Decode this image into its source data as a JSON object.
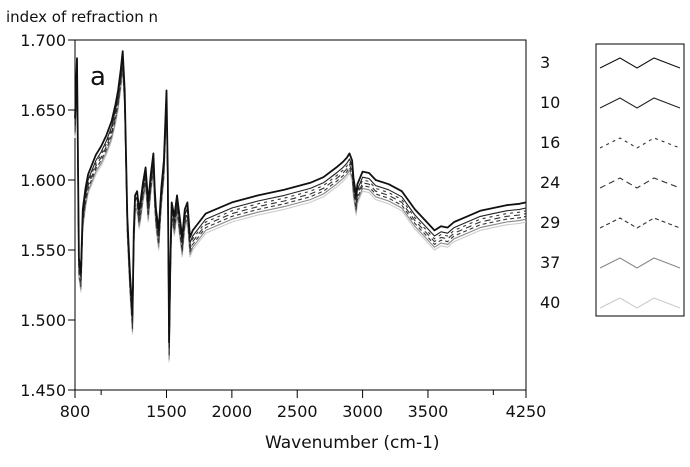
{
  "chart_data": {
    "type": "line",
    "title": "",
    "panel_label": "a",
    "ylabel": "index of refraction n",
    "xlabel": "Wavenumber (cm-1)",
    "xlim": [
      800,
      4250
    ],
    "ylim": [
      1.45,
      1.7
    ],
    "x_tick_labels": [
      "800",
      "1500",
      "2000",
      "2500",
      "3000",
      "3500",
      "4250"
    ],
    "y_tick_labels": [
      "1.700",
      "1.650",
      "1.600",
      "1.550",
      "1.500",
      "1.450"
    ],
    "x_major_ticks": [
      800,
      1500,
      2000,
      2500,
      3000,
      3500,
      4250
    ],
    "x_minor_ticks": [
      1000,
      4000
    ],
    "y_ticks": [
      1.45,
      1.5,
      1.55,
      1.6,
      1.65,
      1.7
    ],
    "grid": false,
    "legend_position": "right",
    "x": [
      800,
      815,
      830,
      845,
      860,
      880,
      900,
      930,
      960,
      1000,
      1040,
      1080,
      1110,
      1130,
      1150,
      1165,
      1180,
      1200,
      1220,
      1240,
      1250,
      1260,
      1275,
      1290,
      1300,
      1320,
      1340,
      1360,
      1380,
      1400,
      1410,
      1420,
      1440,
      1460,
      1480,
      1500,
      1510,
      1520,
      1530,
      1540,
      1550,
      1560,
      1580,
      1600,
      1620,
      1640,
      1660,
      1680,
      1700,
      1750,
      1800,
      2000,
      2200,
      2400,
      2600,
      2700,
      2800,
      2850,
      2880,
      2900,
      2920,
      2930,
      2950,
      2960,
      3000,
      3050,
      3100,
      3200,
      3300,
      3400,
      3500,
      3550,
      3600,
      3650,
      3700,
      3800,
      3900,
      4000,
      4100,
      4200,
      4250
    ],
    "series": [
      {
        "name": "3",
        "dash": "",
        "color": "#111111",
        "offset": 0.004,
        "values": [
          1.64,
          1.683,
          1.54,
          1.53,
          1.575,
          1.59,
          1.6,
          1.607,
          1.614,
          1.62,
          1.628,
          1.638,
          1.65,
          1.66,
          1.675,
          1.688,
          1.66,
          1.57,
          1.53,
          1.5,
          1.56,
          1.585,
          1.588,
          1.575,
          1.58,
          1.594,
          1.605,
          1.58,
          1.6,
          1.615,
          1.59,
          1.575,
          1.56,
          1.59,
          1.61,
          1.66,
          1.6,
          1.48,
          1.54,
          1.58,
          1.575,
          1.57,
          1.585,
          1.57,
          1.555,
          1.575,
          1.58,
          1.555,
          1.56,
          1.566,
          1.572,
          1.58,
          1.585,
          1.589,
          1.594,
          1.598,
          1.605,
          1.609,
          1.612,
          1.615,
          1.61,
          1.598,
          1.585,
          1.593,
          1.602,
          1.601,
          1.596,
          1.593,
          1.588,
          1.575,
          1.565,
          1.56,
          1.563,
          1.562,
          1.566,
          1.57,
          1.574,
          1.576,
          1.578,
          1.579,
          1.58
        ]
      },
      {
        "name": "10",
        "dash": "",
        "color": "#222222",
        "offset": 0.0,
        "values": [
          1.64,
          1.683,
          1.54,
          1.53,
          1.575,
          1.59,
          1.6,
          1.607,
          1.614,
          1.62,
          1.628,
          1.638,
          1.65,
          1.66,
          1.675,
          1.688,
          1.66,
          1.57,
          1.53,
          1.5,
          1.56,
          1.585,
          1.588,
          1.575,
          1.58,
          1.594,
          1.605,
          1.58,
          1.6,
          1.615,
          1.59,
          1.575,
          1.56,
          1.59,
          1.61,
          1.66,
          1.6,
          1.48,
          1.54,
          1.58,
          1.575,
          1.57,
          1.585,
          1.57,
          1.555,
          1.575,
          1.58,
          1.555,
          1.56,
          1.566,
          1.572,
          1.58,
          1.585,
          1.589,
          1.594,
          1.598,
          1.605,
          1.609,
          1.612,
          1.615,
          1.61,
          1.598,
          1.585,
          1.593,
          1.602,
          1.601,
          1.596,
          1.593,
          1.588,
          1.575,
          1.565,
          1.56,
          1.563,
          1.562,
          1.566,
          1.57,
          1.574,
          1.576,
          1.578,
          1.579,
          1.58
        ]
      },
      {
        "name": "16",
        "dash": "3,4",
        "color": "#333333",
        "offset": -0.002,
        "values": [
          1.64,
          1.683,
          1.54,
          1.53,
          1.575,
          1.59,
          1.6,
          1.607,
          1.614,
          1.62,
          1.628,
          1.638,
          1.65,
          1.66,
          1.675,
          1.688,
          1.66,
          1.57,
          1.53,
          1.5,
          1.56,
          1.585,
          1.588,
          1.575,
          1.58,
          1.594,
          1.605,
          1.58,
          1.6,
          1.615,
          1.59,
          1.575,
          1.56,
          1.59,
          1.61,
          1.66,
          1.6,
          1.48,
          1.54,
          1.58,
          1.575,
          1.57,
          1.585,
          1.57,
          1.555,
          1.575,
          1.58,
          1.555,
          1.56,
          1.566,
          1.572,
          1.58,
          1.585,
          1.589,
          1.594,
          1.598,
          1.605,
          1.609,
          1.612,
          1.615,
          1.61,
          1.598,
          1.585,
          1.593,
          1.602,
          1.601,
          1.596,
          1.593,
          1.588,
          1.575,
          1.565,
          1.56,
          1.563,
          1.562,
          1.566,
          1.57,
          1.574,
          1.576,
          1.578,
          1.579,
          1.58
        ]
      },
      {
        "name": "24",
        "dash": "6,4",
        "color": "#333333",
        "offset": -0.004,
        "values": [
          1.64,
          1.683,
          1.54,
          1.53,
          1.575,
          1.59,
          1.6,
          1.607,
          1.614,
          1.62,
          1.628,
          1.638,
          1.65,
          1.66,
          1.675,
          1.688,
          1.66,
          1.57,
          1.53,
          1.5,
          1.56,
          1.585,
          1.588,
          1.575,
          1.58,
          1.594,
          1.605,
          1.58,
          1.6,
          1.615,
          1.59,
          1.575,
          1.56,
          1.59,
          1.61,
          1.66,
          1.6,
          1.48,
          1.54,
          1.58,
          1.575,
          1.57,
          1.585,
          1.57,
          1.555,
          1.575,
          1.58,
          1.555,
          1.56,
          1.566,
          1.572,
          1.58,
          1.585,
          1.589,
          1.594,
          1.598,
          1.605,
          1.609,
          1.612,
          1.615,
          1.61,
          1.598,
          1.585,
          1.593,
          1.602,
          1.601,
          1.596,
          1.593,
          1.588,
          1.575,
          1.565,
          1.56,
          1.563,
          1.562,
          1.566,
          1.57,
          1.574,
          1.576,
          1.578,
          1.579,
          1.58
        ]
      },
      {
        "name": "29",
        "dash": "4,3",
        "color": "#333333",
        "offset": -0.006,
        "values": [
          1.64,
          1.683,
          1.54,
          1.53,
          1.575,
          1.59,
          1.6,
          1.607,
          1.614,
          1.62,
          1.628,
          1.638,
          1.65,
          1.66,
          1.675,
          1.688,
          1.66,
          1.57,
          1.53,
          1.5,
          1.56,
          1.585,
          1.588,
          1.575,
          1.58,
          1.594,
          1.605,
          1.58,
          1.6,
          1.615,
          1.59,
          1.575,
          1.56,
          1.59,
          1.61,
          1.66,
          1.6,
          1.48,
          1.54,
          1.58,
          1.575,
          1.57,
          1.585,
          1.57,
          1.555,
          1.575,
          1.58,
          1.555,
          1.56,
          1.566,
          1.572,
          1.58,
          1.585,
          1.589,
          1.594,
          1.598,
          1.605,
          1.609,
          1.612,
          1.615,
          1.61,
          1.598,
          1.585,
          1.593,
          1.602,
          1.601,
          1.596,
          1.593,
          1.588,
          1.575,
          1.565,
          1.56,
          1.563,
          1.562,
          1.566,
          1.57,
          1.574,
          1.576,
          1.578,
          1.579,
          1.58
        ]
      },
      {
        "name": "37",
        "dash": "",
        "color": "#888888",
        "offset": -0.008,
        "values": [
          1.64,
          1.683,
          1.54,
          1.53,
          1.575,
          1.59,
          1.6,
          1.607,
          1.614,
          1.62,
          1.628,
          1.638,
          1.65,
          1.66,
          1.675,
          1.688,
          1.66,
          1.57,
          1.53,
          1.5,
          1.56,
          1.585,
          1.588,
          1.575,
          1.58,
          1.594,
          1.605,
          1.58,
          1.6,
          1.615,
          1.59,
          1.575,
          1.56,
          1.59,
          1.61,
          1.66,
          1.6,
          1.48,
          1.54,
          1.58,
          1.575,
          1.57,
          1.585,
          1.57,
          1.555,
          1.575,
          1.58,
          1.555,
          1.56,
          1.566,
          1.572,
          1.58,
          1.585,
          1.589,
          1.594,
          1.598,
          1.605,
          1.609,
          1.612,
          1.615,
          1.61,
          1.598,
          1.585,
          1.593,
          1.602,
          1.601,
          1.596,
          1.593,
          1.588,
          1.575,
          1.565,
          1.56,
          1.563,
          1.562,
          1.566,
          1.57,
          1.574,
          1.576,
          1.578,
          1.579,
          1.58
        ]
      },
      {
        "name": "40",
        "dash": "",
        "color": "#cccccc",
        "offset": -0.01,
        "values": [
          1.64,
          1.683,
          1.54,
          1.53,
          1.575,
          1.59,
          1.6,
          1.607,
          1.614,
          1.62,
          1.628,
          1.638,
          1.65,
          1.66,
          1.675,
          1.688,
          1.66,
          1.57,
          1.53,
          1.5,
          1.56,
          1.585,
          1.588,
          1.575,
          1.58,
          1.594,
          1.605,
          1.58,
          1.6,
          1.615,
          1.59,
          1.575,
          1.56,
          1.59,
          1.61,
          1.66,
          1.6,
          1.48,
          1.54,
          1.58,
          1.575,
          1.57,
          1.585,
          1.57,
          1.555,
          1.575,
          1.58,
          1.555,
          1.56,
          1.566,
          1.572,
          1.58,
          1.585,
          1.589,
          1.594,
          1.598,
          1.605,
          1.609,
          1.612,
          1.615,
          1.61,
          1.598,
          1.585,
          1.593,
          1.602,
          1.601,
          1.596,
          1.593,
          1.588,
          1.575,
          1.565,
          1.56,
          1.563,
          1.562,
          1.566,
          1.57,
          1.574,
          1.576,
          1.578,
          1.579,
          1.58
        ]
      }
    ]
  }
}
